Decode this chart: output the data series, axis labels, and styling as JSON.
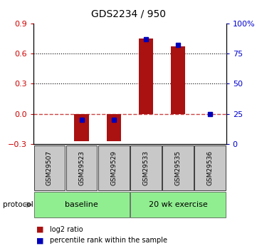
{
  "title": "GDS2234 / 950",
  "samples": [
    "GSM29507",
    "GSM29523",
    "GSM29529",
    "GSM29533",
    "GSM29535",
    "GSM29536"
  ],
  "log2_ratio": [
    0.0,
    -0.27,
    -0.27,
    0.75,
    0.67,
    0.0
  ],
  "percentile_rank": [
    null,
    20.0,
    20.0,
    87.0,
    82.0,
    25.0
  ],
  "ylim_left": [
    -0.3,
    0.9
  ],
  "ylim_right": [
    0,
    100
  ],
  "yticks_left": [
    -0.3,
    0.0,
    0.3,
    0.6,
    0.9
  ],
  "yticks_right": [
    0,
    25,
    50,
    75,
    100
  ],
  "yticks_dotted": [
    0.3,
    0.6
  ],
  "bar_color": "#AA1111",
  "point_color": "#0000BB",
  "zero_line_color": "#CC4444",
  "plot_bg_color": "#ffffff",
  "tick_color_left": "#CC0000",
  "tick_color_right": "#0000CC",
  "legend_bar_label": "log2 ratio",
  "legend_point_label": "percentile rank within the sample",
  "protocol_label": "protocol",
  "group_box_color": "#c8c8c8",
  "group_green_color": "#90EE90",
  "groups": [
    {
      "label": "baseline",
      "start": 0,
      "end": 3
    },
    {
      "label": "20 wk exercise",
      "start": 3,
      "end": 6
    }
  ]
}
